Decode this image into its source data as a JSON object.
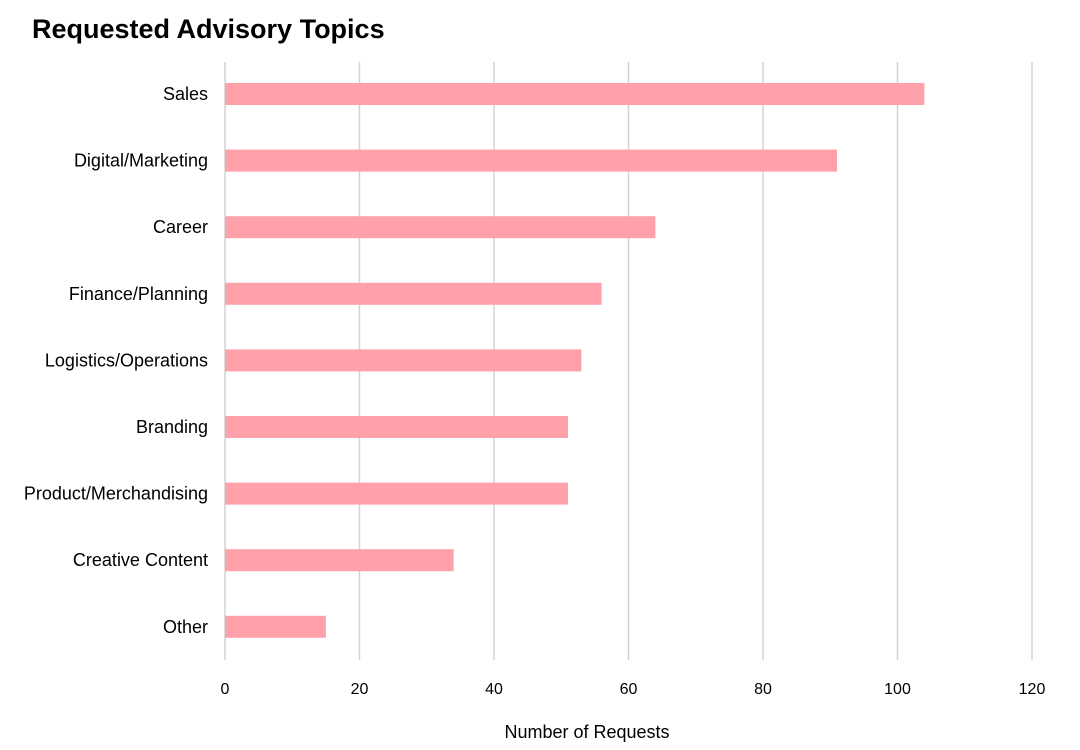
{
  "chart_data": {
    "type": "bar",
    "orientation": "horizontal",
    "title": "Requested Advisory Topics",
    "xlabel": "Number of Requests",
    "ylabel": "",
    "categories": [
      "Sales",
      "Digital/Marketing",
      "Career",
      "Finance/Planning",
      "Logistics/Operations",
      "Branding",
      "Product/Merchandising",
      "Creative Content",
      "Other"
    ],
    "values": [
      104,
      91,
      64,
      56,
      53,
      51,
      51,
      34,
      15
    ],
    "xlim": [
      0,
      120
    ],
    "xticks": [
      "0",
      "20",
      "40",
      "60",
      "80",
      "100",
      "120"
    ],
    "grid": "vertical",
    "legend": "none",
    "bar_color": "#ffa1ab",
    "grid_color": "#d3d3d3"
  }
}
